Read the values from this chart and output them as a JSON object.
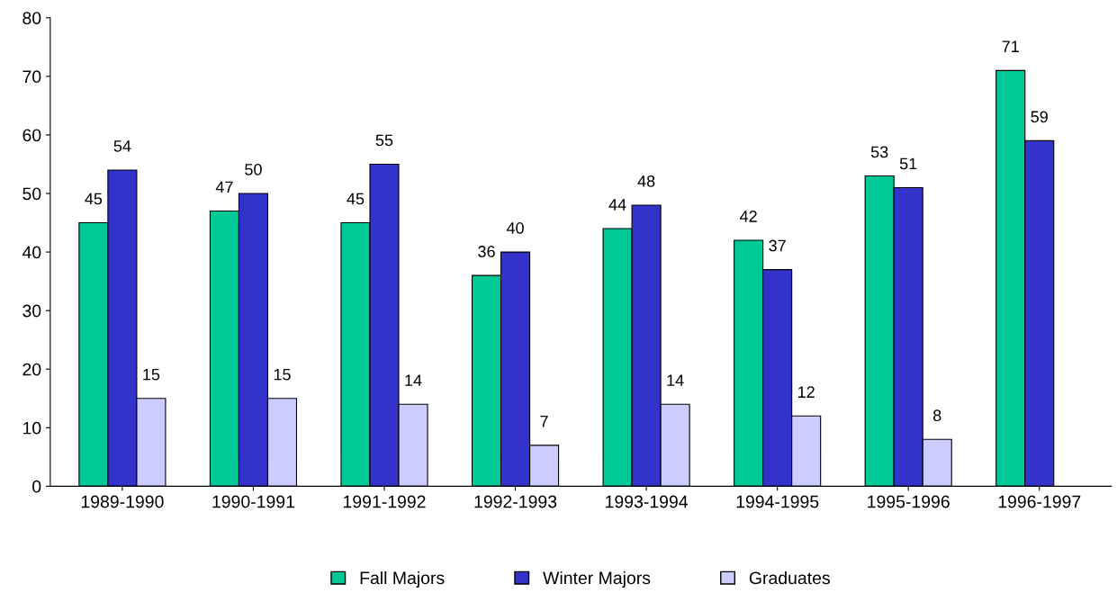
{
  "chart_data": {
    "type": "bar",
    "categories": [
      "1989-1990",
      "1990-1991",
      "1991-1992",
      "1992-1993",
      "1993-1994",
      "1994-1995",
      "1995-1996",
      "1996-1997"
    ],
    "series": [
      {
        "name": "Fall Majors",
        "color": "#00c896",
        "values": [
          45,
          47,
          45,
          36,
          44,
          42,
          53,
          71
        ]
      },
      {
        "name": "Winter Majors",
        "color": "#3333cc",
        "values": [
          54,
          50,
          55,
          40,
          48,
          37,
          51,
          59
        ]
      },
      {
        "name": "Graduates",
        "color": "#ccccff",
        "values": [
          15,
          15,
          14,
          7,
          14,
          12,
          8,
          null
        ]
      }
    ],
    "ylim": [
      0,
      80
    ],
    "yticks": [
      0,
      10,
      20,
      30,
      40,
      50,
      60,
      70,
      80
    ],
    "grid": false,
    "legend": "bottom",
    "data_labels": true
  }
}
